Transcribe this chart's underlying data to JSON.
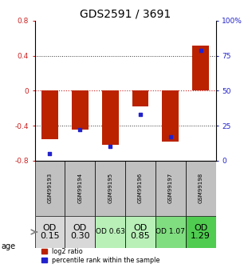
{
  "title": "GDS2591 / 3691",
  "samples": [
    "GSM99193",
    "GSM99194",
    "GSM99195",
    "GSM99196",
    "GSM99197",
    "GSM99198"
  ],
  "log2_ratio": [
    -0.55,
    -0.44,
    -0.62,
    -0.18,
    -0.58,
    0.52
  ],
  "percentile_rank": [
    5,
    22,
    10,
    33,
    17,
    79
  ],
  "od_labels": [
    "OD\n0.15",
    "OD\n0.30",
    "OD 0.63",
    "OD\n0.85",
    "OD 1.07",
    "OD\n1.29"
  ],
  "od_colors": [
    "#d8d8d8",
    "#d8d8d8",
    "#b8f0b8",
    "#b8f0b8",
    "#80dd80",
    "#50cc50"
  ],
  "od_fontsize": [
    8,
    8,
    6.5,
    8,
    6.5,
    8
  ],
  "ylim": [
    -0.8,
    0.8
  ],
  "yticks_left": [
    -0.8,
    -0.4,
    0.0,
    0.4,
    0.8
  ],
  "yticks_right": [
    0,
    25,
    50,
    75,
    100
  ],
  "ytick_labels_left": [
    "-0.8",
    "-0.4",
    "0",
    "0.4",
    "0.8"
  ],
  "ytick_labels_right": [
    "0",
    "25",
    "50",
    "75",
    "100%"
  ],
  "bar_color": "#bb2200",
  "dot_color": "#2222cc",
  "zero_line_color": "#cc2222",
  "grid_color": "#333333",
  "title_fontsize": 10,
  "axis_label_color_left": "#cc2222",
  "axis_label_color_right": "#2222cc",
  "legend_red_label": "log2 ratio",
  "legend_blue_label": "percentile rank within the sample",
  "age_label": "age",
  "header_bg": "#c0c0c0",
  "bar_width": 0.55
}
